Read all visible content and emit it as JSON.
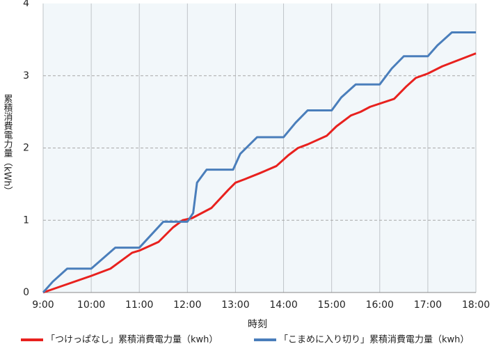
{
  "chart_data": {
    "type": "line",
    "x_label": "時刻",
    "y_label": "累積消費電力量（kWh）",
    "xlim": [
      9,
      18
    ],
    "xticks": [
      {
        "value": 9,
        "label": "9:00"
      },
      {
        "value": 10,
        "label": "10:00"
      },
      {
        "value": 11,
        "label": "11:00"
      },
      {
        "value": 12,
        "label": "12:00"
      },
      {
        "value": 13,
        "label": "13:00"
      },
      {
        "value": 14,
        "label": "14:00"
      },
      {
        "value": 15,
        "label": "15:00"
      },
      {
        "value": 16,
        "label": "16:00"
      },
      {
        "value": 17,
        "label": "17:00"
      },
      {
        "value": 18,
        "label": "18:00"
      }
    ],
    "ylim": [
      0,
      4
    ],
    "yticks": [
      0,
      1,
      2,
      3,
      4
    ],
    "grid": true,
    "legend": "bottom",
    "series": [
      {
        "name": "「つけっぱなし」累積消費電力量（kwh）",
        "color": "#e8211e",
        "x": [
          9,
          10,
          10.4,
          10.85,
          11,
          11.4,
          11.7,
          11.9,
          12.1,
          12.5,
          12.85,
          13,
          13.2,
          13.5,
          13.85,
          14.1,
          14.3,
          14.5,
          14.9,
          15.1,
          15.4,
          15.6,
          15.8,
          16.3,
          16.55,
          16.75,
          17,
          17.3,
          18
        ],
        "values": [
          0,
          0.23,
          0.33,
          0.55,
          0.58,
          0.7,
          0.9,
          1.0,
          1.03,
          1.17,
          1.42,
          1.52,
          1.57,
          1.65,
          1.75,
          1.9,
          2.0,
          2.05,
          2.17,
          2.3,
          2.45,
          2.5,
          2.57,
          2.68,
          2.85,
          2.97,
          3.03,
          3.13,
          3.31
        ]
      },
      {
        "name": "「こまめに入り切り」累積消費電力量（kwh）",
        "color": "#4a7ebb",
        "x": [
          9,
          9.2,
          9.5,
          10,
          10.5,
          11,
          11.5,
          12,
          12.12,
          12.2,
          12.4,
          12.95,
          13.1,
          13.45,
          14,
          14.25,
          14.5,
          15,
          15.2,
          15.5,
          16,
          16.25,
          16.5,
          17,
          17.2,
          17.5,
          18
        ],
        "values": [
          0,
          0.15,
          0.33,
          0.33,
          0.62,
          0.62,
          0.98,
          0.98,
          1.1,
          1.52,
          1.7,
          1.7,
          1.92,
          2.15,
          2.15,
          2.35,
          2.52,
          2.52,
          2.7,
          2.88,
          2.88,
          3.1,
          3.27,
          3.27,
          3.42,
          3.6,
          3.6
        ]
      }
    ]
  }
}
